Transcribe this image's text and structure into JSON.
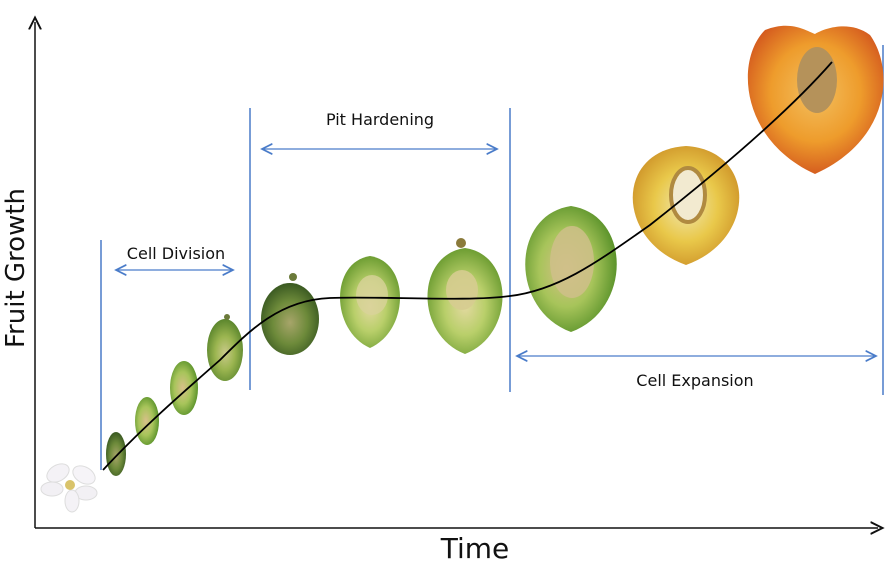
{
  "axes": {
    "y_label": "Fruit Growth",
    "x_label": "Time"
  },
  "phases": [
    {
      "label": "Cell Division"
    },
    {
      "label": "Pit Hardening"
    },
    {
      "label": "Cell Expansion"
    }
  ],
  "colors": {
    "phase_lines": "#4a7cc9",
    "axis": "#111111",
    "growth_curve": "#000000"
  }
}
